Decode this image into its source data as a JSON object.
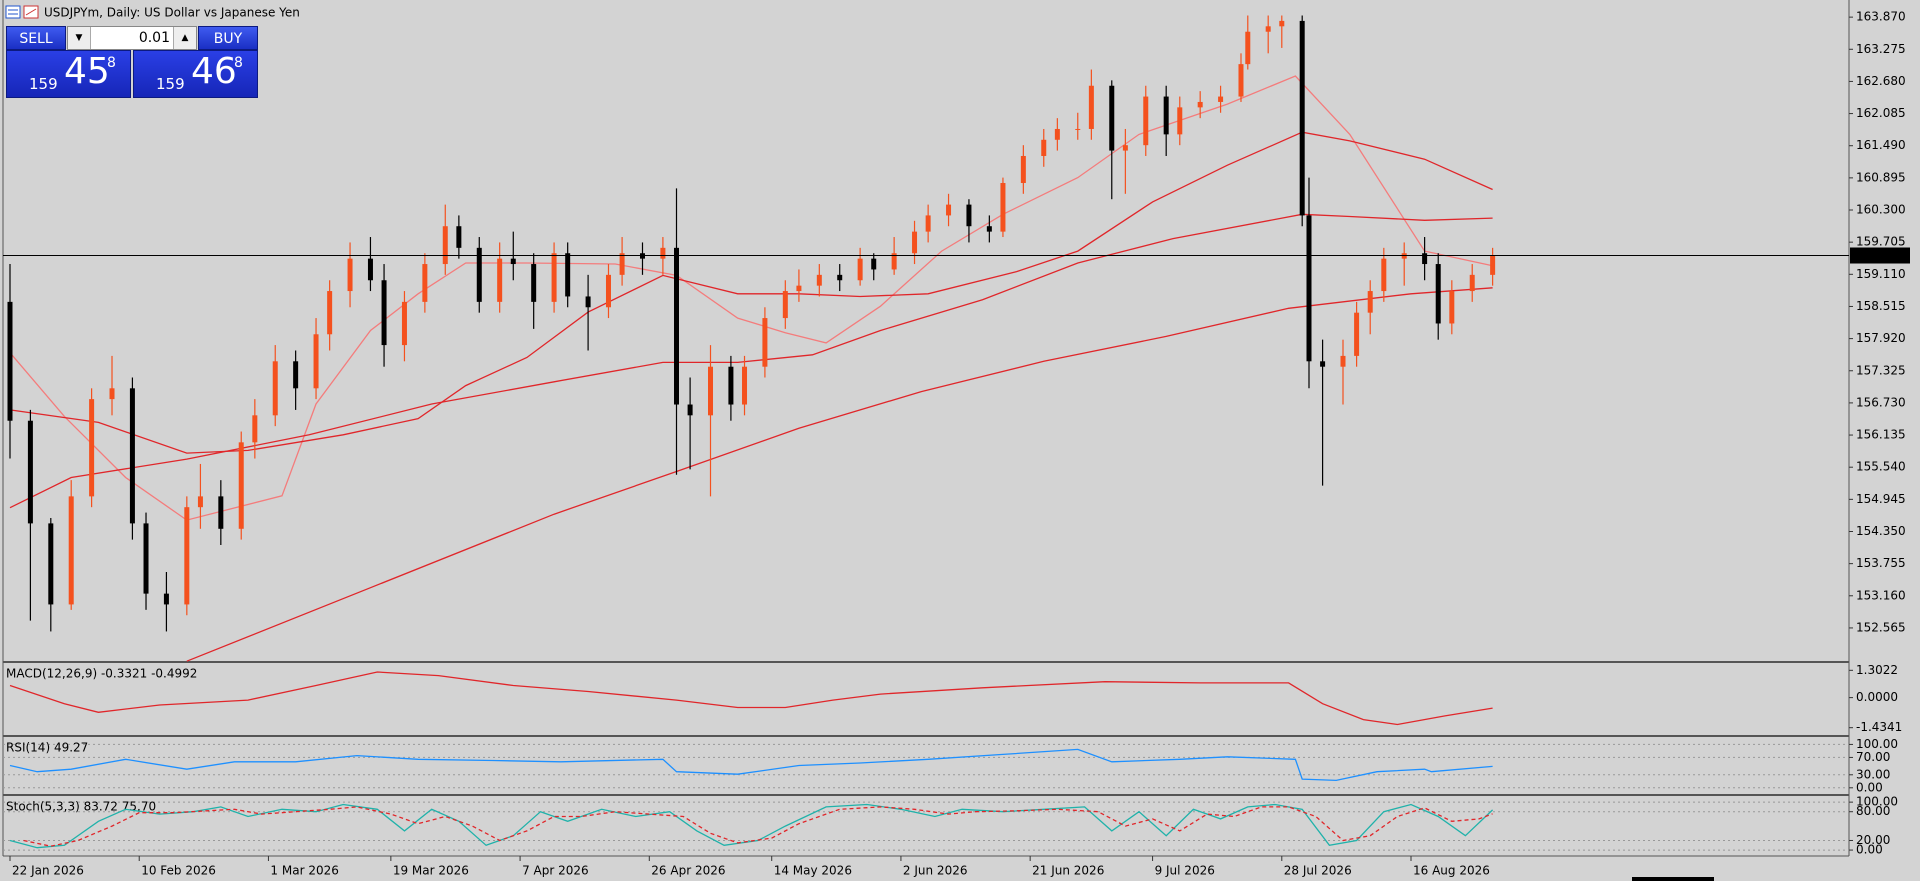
{
  "trade_panel": {
    "sell": "SELL",
    "buy": "BUY",
    "lot": "0.01",
    "bid": {
      "big": "159",
      "mid": "45",
      "small": "8"
    },
    "ask": {
      "big": "159",
      "mid": "46",
      "small": "8"
    }
  },
  "chart_data": [
    {
      "type": "candlestick",
      "title": "USDJPYm, Daily:  US Dollar vs Japanese Yen",
      "up_color": "#f4511e",
      "down_color": "#000000",
      "x": [
        0,
        3,
        6,
        9,
        12,
        15,
        18,
        20,
        23,
        26,
        28,
        31,
        34,
        36,
        39,
        42,
        45,
        47,
        50,
        53,
        55,
        58,
        61,
        64,
        66,
        69,
        72,
        74,
        77,
        80,
        82,
        85,
        88,
        90,
        93,
        96,
        98,
        100,
        103,
        106,
        108,
        111,
        114,
        116,
        119,
        122,
        125,
        127,
        130,
        133,
        135,
        138,
        141,
        144,
        146,
        149,
        152,
        154,
        157,
        159,
        162,
        164,
        167,
        170,
        172,
        175,
        178,
        181,
        182,
        185,
        187,
        190,
        191,
        193,
        196,
        198,
        200,
        202,
        205,
        208,
        210,
        212,
        215,
        218
      ],
      "open": [
        158.6,
        156.4,
        154.5,
        153.0,
        155.0,
        156.8,
        157.0,
        154.5,
        153.2,
        153.0,
        154.8,
        155.0,
        154.4,
        156.0,
        156.5,
        157.5,
        157.0,
        158.0,
        158.8,
        159.4,
        159.0,
        157.8,
        158.6,
        159.3,
        160.0,
        159.6,
        158.6,
        159.4,
        159.3,
        158.6,
        159.5,
        158.7,
        158.5,
        159.1,
        159.5,
        159.4,
        159.6,
        156.7,
        156.5,
        157.4,
        156.7,
        157.4,
        158.3,
        158.8,
        158.9,
        159.1,
        159.0,
        159.4,
        159.2,
        159.5,
        159.9,
        160.2,
        160.4,
        160.0,
        159.9,
        160.8,
        161.3,
        161.6,
        161.8,
        161.8,
        162.6,
        161.4,
        161.5,
        162.4,
        161.7,
        162.2,
        162.3,
        162.4,
        163.0,
        163.6,
        163.7,
        163.8,
        160.2,
        157.5,
        157.4,
        157.6,
        158.4,
        158.8,
        159.4,
        159.5,
        159.3,
        158.2,
        158.8,
        159.1
      ],
      "high": [
        159.3,
        156.6,
        154.6,
        155.3,
        157.0,
        157.6,
        157.2,
        154.7,
        153.6,
        155.0,
        155.6,
        155.3,
        156.2,
        156.8,
        157.8,
        157.7,
        158.3,
        159.0,
        159.7,
        159.8,
        159.3,
        158.8,
        159.5,
        160.4,
        160.2,
        159.8,
        159.7,
        159.9,
        159.5,
        159.7,
        159.7,
        159.1,
        159.3,
        159.8,
        159.7,
        159.8,
        160.7,
        157.2,
        157.8,
        157.6,
        157.6,
        158.5,
        159.0,
        159.2,
        159.3,
        159.3,
        159.6,
        159.5,
        159.8,
        160.1,
        160.4,
        160.6,
        160.5,
        160.2,
        160.9,
        161.5,
        161.8,
        162.0,
        162.1,
        162.9,
        162.7,
        161.8,
        162.6,
        162.6,
        162.4,
        162.5,
        162.6,
        163.2,
        163.9,
        163.9,
        163.9,
        163.9,
        160.9,
        157.9,
        157.9,
        158.6,
        159.0,
        159.6,
        159.7,
        159.8,
        159.5,
        159.0,
        159.3,
        159.6
      ],
      "low": [
        155.7,
        152.7,
        152.5,
        152.9,
        154.8,
        156.5,
        154.2,
        152.9,
        152.5,
        152.8,
        154.4,
        154.1,
        154.2,
        155.7,
        156.3,
        156.6,
        156.8,
        157.7,
        158.5,
        158.8,
        157.4,
        157.5,
        158.4,
        159.1,
        159.4,
        158.4,
        158.4,
        159.0,
        158.1,
        158.4,
        158.5,
        157.7,
        158.3,
        158.9,
        159.1,
        159.1,
        155.4,
        155.5,
        155.0,
        156.4,
        156.5,
        157.2,
        158.1,
        158.6,
        158.7,
        158.8,
        158.9,
        159.0,
        159.1,
        159.3,
        159.7,
        160.0,
        159.7,
        159.7,
        159.8,
        160.6,
        161.1,
        161.4,
        161.6,
        161.6,
        160.5,
        160.6,
        161.3,
        161.3,
        161.5,
        162.0,
        162.1,
        162.3,
        162.9,
        163.2,
        163.3,
        160.0,
        157.0,
        155.2,
        156.7,
        157.4,
        158.0,
        158.6,
        158.9,
        159.0,
        157.9,
        158.0,
        158.6,
        158.9
      ],
      "close": [
        156.4,
        154.5,
        153.0,
        155.0,
        156.8,
        157.0,
        154.5,
        153.2,
        153.0,
        154.8,
        155.0,
        154.4,
        156.0,
        156.5,
        157.5,
        157.0,
        158.0,
        158.8,
        159.4,
        159.0,
        157.8,
        158.6,
        159.3,
        160.0,
        159.6,
        158.6,
        159.4,
        159.3,
        158.6,
        159.5,
        158.7,
        158.5,
        159.1,
        159.5,
        159.4,
        159.6,
        156.7,
        156.5,
        157.4,
        156.7,
        157.4,
        158.3,
        158.8,
        158.9,
        159.1,
        159.0,
        159.4,
        159.2,
        159.5,
        159.9,
        160.2,
        160.4,
        160.0,
        159.9,
        160.8,
        161.3,
        161.6,
        161.8,
        161.8,
        162.6,
        161.4,
        161.5,
        162.4,
        161.7,
        162.2,
        162.3,
        162.4,
        163.0,
        163.6,
        163.7,
        163.8,
        160.2,
        157.5,
        157.4,
        157.6,
        158.4,
        158.8,
        159.4,
        159.5,
        159.3,
        158.2,
        158.8,
        159.1,
        159.458
      ],
      "series": [
        {
          "color": "#f47c7c",
          "x": [
            0,
            8,
            17,
            26,
            40,
            45,
            53,
            60,
            67,
            76,
            89,
            98,
            107,
            114,
            120,
            128,
            137,
            146,
            157,
            166,
            179,
            189,
            197,
            208,
            218
          ],
          "values": [
            157.66,
            156.48,
            155.35,
            154.56,
            155.01,
            156.71,
            158.07,
            158.75,
            159.32,
            159.32,
            159.3,
            159.09,
            158.3,
            158.03,
            157.84,
            158.52,
            159.54,
            160.22,
            160.9,
            161.7,
            162.26,
            162.78,
            161.7,
            159.54,
            159.27
          ]
        },
        {
          "color": "#e0262a",
          "x": [
            0,
            13,
            26,
            35,
            49,
            60,
            67,
            76,
            85,
            96,
            107,
            116,
            125,
            135,
            148,
            157,
            168,
            179,
            190,
            197,
            208,
            218
          ],
          "values": [
            156.6,
            156.37,
            155.8,
            155.85,
            156.14,
            156.44,
            157.05,
            157.57,
            158.41,
            159.09,
            158.75,
            158.75,
            158.7,
            158.75,
            159.16,
            159.54,
            160.45,
            161.13,
            161.74,
            161.58,
            161.24,
            160.68
          ]
        },
        {
          "color": "#e0262a",
          "x": [
            0,
            9,
            26,
            44,
            62,
            80,
            96,
            107,
            118,
            128,
            143,
            157,
            171,
            190,
            197,
            208,
            218
          ],
          "values": [
            154.79,
            155.35,
            155.69,
            156.14,
            156.71,
            157.12,
            157.48,
            157.48,
            157.62,
            158.07,
            158.64,
            159.32,
            159.77,
            160.22,
            160.18,
            160.11,
            160.15
          ]
        },
        {
          "color": "#e0262a",
          "x": [
            26,
            53,
            80,
            98,
            116,
            134,
            152,
            170,
            188,
            206,
            218
          ],
          "values": [
            151.95,
            153.31,
            154.67,
            155.46,
            156.26,
            156.94,
            157.5,
            157.96,
            158.48,
            158.75,
            158.86
          ]
        }
      ],
      "current_price": {
        "value": 159.458,
        "label": "159.458"
      },
      "xlim": [
        -1.47,
        270.4
      ],
      "xticks": [
        {
          "value": 0,
          "label": "22 Jan 2026"
        },
        {
          "value": 19,
          "label": "10 Feb 2026"
        },
        {
          "value": 38,
          "label": "1 Mar 2026"
        },
        {
          "value": 56,
          "label": "19 Mar 2026"
        },
        {
          "value": 75,
          "label": "7 Apr 2026"
        },
        {
          "value": 94,
          "label": "26 Apr 2026"
        },
        {
          "value": 112,
          "label": "14 May 2026"
        },
        {
          "value": 131,
          "label": "2 Jun 2026"
        },
        {
          "value": 150,
          "label": "21 Jun 2026"
        },
        {
          "value": 168,
          "label": "9 Jul 2026"
        },
        {
          "value": 187,
          "label": "28 Jul 2026"
        },
        {
          "value": 206,
          "label": "16 Aug 2026"
        }
      ],
      "ylim": [
        151.953,
        164.187
      ],
      "yticks": [
        {
          "value": 163.87,
          "label": "163.870"
        },
        163.275,
        {
          "value": 162.68,
          "label": "162.680"
        },
        162.085,
        {
          "value": 161.49,
          "label": "161.490"
        },
        160.895,
        {
          "value": 160.3,
          "label": "160.300"
        },
        159.705,
        {
          "value": 159.11,
          "label": "159.110"
        },
        158.515,
        {
          "value": 157.92,
          "label": "157.920"
        },
        157.325,
        {
          "value": 156.73,
          "label": "156.730"
        },
        156.135,
        {
          "value": 155.54,
          "label": "155.540"
        },
        154.945,
        {
          "value": 154.35,
          "label": "154.350"
        },
        153.755,
        {
          "value": 153.16,
          "label": "153.160"
        },
        152.565
      ],
      "grid": false
    },
    {
      "type": "line",
      "title": "MACD(12,26,9) -0.3321 -0.4992",
      "xlim": [
        -1.47,
        270.4
      ],
      "ylim": [
        -1.783,
        1.651
      ],
      "yticks": [
        1.3022,
        {
          "value": 0,
          "label": "0.0000"
        },
        -1.4341
      ],
      "grid": false,
      "series": [
        {
          "color": "#e0262a",
          "x": [
            0,
            8,
            13,
            22,
            35,
            45,
            54,
            63,
            74,
            85,
            98,
            107,
            114,
            121,
            128,
            143,
            161,
            175,
            188,
            193,
            199,
            204,
            211,
            218
          ],
          "values": [
            0.58,
            -0.29,
            -0.7,
            -0.35,
            -0.12,
            0.58,
            1.22,
            1.05,
            0.58,
            0.29,
            -0.12,
            -0.47,
            -0.47,
            -0.12,
            0.17,
            0.47,
            0.76,
            0.7,
            0.7,
            -0.29,
            -1.05,
            -1.28,
            -0.87,
            -0.4992
          ]
        }
      ]
    },
    {
      "type": "line",
      "title": "RSI(14) 49.27",
      "xlim": [
        -1.47,
        270.4
      ],
      "ylim": [
        -14.3,
        117.1
      ],
      "yticks": [
        {
          "value": 100,
          "label": "100.00"
        },
        {
          "value": 70,
          "label": "70.00"
        },
        {
          "value": 30,
          "label": "30.00"
        },
        {
          "value": 0,
          "label": "0.00"
        }
      ],
      "grid": true,
      "series": [
        {
          "color": "#1e90ff",
          "x": [
            0,
            4,
            9,
            17,
            26,
            33,
            42,
            51,
            60,
            71,
            81,
            96,
            98,
            107,
            116,
            125,
            135,
            146,
            157,
            162,
            172,
            179,
            189,
            190,
            195,
            201,
            208,
            209,
            218
          ],
          "values": [
            51.4,
            37.1,
            42.9,
            65.7,
            42.9,
            60,
            60,
            74.3,
            65.7,
            62.9,
            60,
            65.7,
            37.1,
            31.4,
            51.4,
            57.1,
            65.7,
            77.1,
            88.6,
            60,
            65.7,
            71.4,
            65.7,
            20,
            17.1,
            37.1,
            42.9,
            37.1,
            49.27
          ]
        }
      ]
    },
    {
      "type": "line",
      "title": "Stoch(5,3,3) 83.72 75.70",
      "xlim": [
        -1.47,
        270.4
      ],
      "ylim": [
        -10.3,
        112.8
      ],
      "yticks": [
        {
          "value": 100,
          "label": "100.00"
        },
        {
          "value": 80,
          "label": "80.00"
        },
        {
          "value": 20,
          "label": "20.00"
        },
        {
          "value": 0,
          "label": "0.00"
        }
      ],
      "grid": true,
      "series": [
        {
          "color": "#20b2aa",
          "dashed": false,
          "x": [
            0,
            4,
            8,
            13,
            17,
            22,
            27,
            31,
            35,
            40,
            45,
            49,
            54,
            58,
            62,
            66,
            70,
            74,
            78,
            82,
            87,
            92,
            97,
            101,
            105,
            110,
            114,
            120,
            126,
            131,
            136,
            140,
            146,
            152,
            158,
            162,
            166,
            170,
            174,
            178,
            182,
            186,
            190,
            194,
            198,
            202,
            206,
            210,
            214,
            218
          ],
          "values": [
            20,
            5,
            10,
            60,
            85,
            75,
            80,
            90,
            70,
            85,
            80,
            95,
            85,
            40,
            85,
            60,
            10,
            30,
            80,
            60,
            85,
            70,
            80,
            40,
            10,
            20,
            50,
            90,
            95,
            85,
            70,
            85,
            80,
            85,
            90,
            40,
            80,
            30,
            85,
            65,
            90,
            95,
            85,
            10,
            20,
            80,
            95,
            70,
            30,
            83.72
          ]
        },
        {
          "color": "#e0262a",
          "dashed": true,
          "x": [
            2,
            6,
            10,
            15,
            19,
            24,
            29,
            33,
            37,
            42,
            47,
            51,
            56,
            60,
            64,
            68,
            72,
            76,
            80,
            84,
            89,
            94,
            99,
            103,
            107,
            112,
            116,
            122,
            128,
            133,
            138,
            142,
            148,
            154,
            160,
            164,
            168,
            172,
            176,
            180,
            184,
            188,
            192,
            196,
            200,
            204,
            208,
            212,
            216,
            218
          ],
          "values": [
            20,
            8,
            20,
            50,
            78,
            78,
            82,
            85,
            75,
            80,
            85,
            90,
            75,
            55,
            70,
            50,
            20,
            40,
            70,
            70,
            80,
            75,
            70,
            35,
            15,
            25,
            55,
            85,
            90,
            85,
            75,
            80,
            82,
            85,
            80,
            50,
            65,
            40,
            75,
            70,
            90,
            90,
            70,
            20,
            30,
            70,
            88,
            60,
            65,
            75.7
          ]
        }
      ]
    }
  ]
}
